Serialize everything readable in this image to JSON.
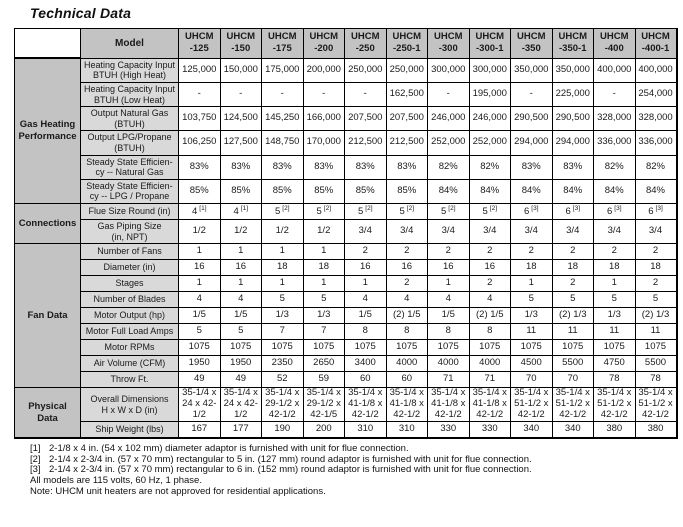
{
  "title": "Technical Data",
  "table": {
    "corner_label": "Model",
    "columns": [
      "UHCM\n-125",
      "UHCM\n-150",
      "UHCM\n-175",
      "UHCM\n-200",
      "UHCM\n-250",
      "UHCM\n-250-1",
      "UHCM\n-300",
      "UHCM\n-300-1",
      "UHCM\n-350",
      "UHCM\n-350-1",
      "UHCM\n-400",
      "UHCM\n-400-1"
    ],
    "groups": [
      {
        "name": "Gas Heating\nPerformance",
        "rows": [
          {
            "label": "Heating Capacity Input\nBTUH (High Heat)",
            "values": [
              "125,000",
              "150,000",
              "175,000",
              "200,000",
              "250,000",
              "250,000",
              "300,000",
              "300,000",
              "350,000",
              "350,000",
              "400,000",
              "400,000"
            ]
          },
          {
            "label": "Heating Capacity Input\nBTUH (Low Heat)",
            "values": [
              "-",
              "-",
              "-",
              "-",
              "-",
              "162,500",
              "-",
              "195,000",
              "-",
              "225,000",
              "-",
              "254,000"
            ]
          },
          {
            "label": "Output Natural Gas\n(BTUH)",
            "values": [
              "103,750",
              "124,500",
              "145,250",
              "166,000",
              "207,500",
              "207,500",
              "246,000",
              "246,000",
              "290,500",
              "290,500",
              "328,000",
              "328,000"
            ]
          },
          {
            "label": "Output LPG/Propane\n(BTUH)",
            "values": [
              "106,250",
              "127,500",
              "148,750",
              "170,000",
              "212,500",
              "212,500",
              "252,000",
              "252,000",
              "294,000",
              "294,000",
              "336,000",
              "336,000"
            ]
          },
          {
            "label": "Steady State Efficien-\ncy -- Natural Gas",
            "values": [
              "83%",
              "83%",
              "83%",
              "83%",
              "83%",
              "83%",
              "82%",
              "82%",
              "83%",
              "83%",
              "82%",
              "82%"
            ]
          },
          {
            "label": "Steady State Efficien-\ncy -- LPG / Propane",
            "values": [
              "85%",
              "85%",
              "85%",
              "85%",
              "85%",
              "85%",
              "84%",
              "84%",
              "84%",
              "84%",
              "84%",
              "84%"
            ]
          }
        ]
      },
      {
        "name": "Connections",
        "rows": [
          {
            "label": "Flue Size Round (in)",
            "values": [
              "4",
              "4",
              "5",
              "5",
              "5",
              "5",
              "5",
              "5",
              "6",
              "6",
              "6",
              "6"
            ],
            "sups": [
              "[1]",
              "[1]",
              "[2]",
              "[2]",
              "[2]",
              "[2]",
              "[2]",
              "[2]",
              "[3]",
              "[3]",
              "[3]",
              "[3]"
            ]
          },
          {
            "label": "Gas Piping Size\n(in, NPT)",
            "values": [
              "1/2",
              "1/2",
              "1/2",
              "1/2",
              "3/4",
              "3/4",
              "3/4",
              "3/4",
              "3/4",
              "3/4",
              "3/4",
              "3/4"
            ]
          }
        ]
      },
      {
        "name": "Fan Data",
        "rows": [
          {
            "label": "Number of Fans",
            "values": [
              "1",
              "1",
              "1",
              "1",
              "2",
              "2",
              "2",
              "2",
              "2",
              "2",
              "2",
              "2"
            ]
          },
          {
            "label": "Diameter (in)",
            "values": [
              "16",
              "16",
              "18",
              "18",
              "16",
              "16",
              "16",
              "16",
              "18",
              "18",
              "18",
              "18"
            ]
          },
          {
            "label": "Stages",
            "values": [
              "1",
              "1",
              "1",
              "1",
              "1",
              "2",
              "1",
              "2",
              "1",
              "2",
              "1",
              "2"
            ]
          },
          {
            "label": "Number of Blades",
            "values": [
              "4",
              "4",
              "5",
              "5",
              "4",
              "4",
              "4",
              "4",
              "5",
              "5",
              "5",
              "5"
            ]
          },
          {
            "label": "Motor Output (hp)",
            "values": [
              "1/5",
              "1/5",
              "1/3",
              "1/3",
              "1/5",
              "(2) 1/5",
              "1/5",
              "(2) 1/5",
              "1/3",
              "(2) 1/3",
              "1/3",
              "(2) 1/3"
            ]
          },
          {
            "label": "Motor Full Load Amps",
            "values": [
              "5",
              "5",
              "7",
              "7",
              "8",
              "8",
              "8",
              "8",
              "11",
              "11",
              "11",
              "11"
            ]
          },
          {
            "label": "Motor RPMs",
            "values": [
              "1075",
              "1075",
              "1075",
              "1075",
              "1075",
              "1075",
              "1075",
              "1075",
              "1075",
              "1075",
              "1075",
              "1075"
            ]
          },
          {
            "label": "Air Volume (CFM)",
            "values": [
              "1950",
              "1950",
              "2350",
              "2650",
              "3400",
              "4000",
              "4000",
              "4000",
              "4500",
              "5500",
              "4750",
              "5500"
            ]
          },
          {
            "label": "Throw Ft.",
            "values": [
              "49",
              "49",
              "52",
              "59",
              "60",
              "60",
              "71",
              "71",
              "70",
              "70",
              "78",
              "78"
            ]
          }
        ]
      },
      {
        "name": "Physical\nData",
        "rows": [
          {
            "label": "Overall Dimensions\nH x W x D (in)",
            "values": [
              "35-1/4 x\n24 x 42-\n1/2",
              "35-1/4 x\n24 x 42-\n1/2",
              "35-1/4 x\n29-1/2 x\n42-1/2",
              "35-1/4 x\n29-1/2 x\n42-1/5",
              "35-1/4 x\n41-1/8 x\n42-1/2",
              "35-1/4 x\n41-1/8 x\n42-1/2",
              "35-1/4 x\n41-1/8 x\n42-1/2",
              "35-1/4 x\n41-1/8 x\n42-1/2",
              "35-1/4 x\n51-1/2 x\n42-1/2",
              "35-1/4 x\n51-1/2 x\n42-1/2",
              "35-1/4 x\n51-1/2 x\n42-1/2",
              "35-1/4 x\n51-1/2 x\n42-1/2"
            ]
          },
          {
            "label": "Ship Weight (lbs)",
            "values": [
              "167",
              "177",
              "190",
              "200",
              "310",
              "310",
              "330",
              "330",
              "340",
              "340",
              "380",
              "380"
            ]
          }
        ]
      }
    ]
  },
  "footnotes": {
    "refs": [
      {
        "marker": "[1]",
        "text": "2-1/8 x 4 in. (54 x 102 mm) diameter adaptor is furnished with unit for flue connection."
      },
      {
        "marker": "[2]",
        "text": "2-1/4 x 2-3/4 in. (57 x 70 mm) rectangular to 5 in. (127 mm) round adaptor is furnished with unit for flue connection."
      },
      {
        "marker": "[3]",
        "text": "2-1/4 x 2-3/4 in. (57 x 70 mm) rectangular to 6 in. (152 mm) round adaptor is furnished with unit for flue connection."
      }
    ],
    "lines": [
      "All models are 115 volts, 60 Hz, 1 phase.",
      "Note:  UHCM unit heaters are not approved for residential applications."
    ]
  },
  "colors": {
    "header_bg": "#c3c3c3",
    "row_label_bg": "#d9d9d9",
    "border": "#000000"
  }
}
